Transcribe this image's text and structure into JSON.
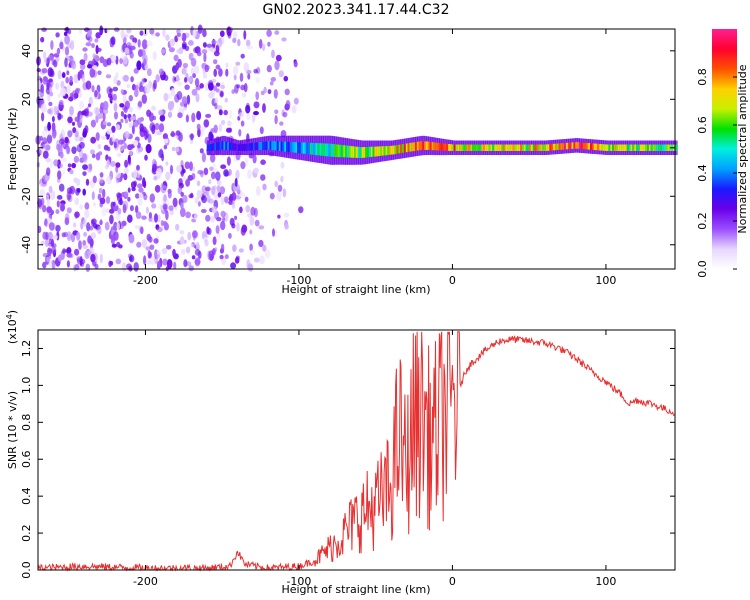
{
  "title": "GN02.2023.341.17.44.C32",
  "chart_data": [
    {
      "type": "heatmap",
      "name": "spectrogram",
      "xlabel": "Height of straight line (km)",
      "ylabel": "Frequency (Hz)",
      "xlim": [
        -270,
        145
      ],
      "ylim": [
        -50,
        49
      ],
      "xticks": [
        -200,
        -100,
        0,
        100
      ],
      "yticks": [
        -40,
        -20,
        0,
        20,
        40
      ],
      "colorbar": {
        "label": "Normalized spectral amplitude",
        "range": [
          0,
          1
        ],
        "ticks": [
          "0.0",
          "0.2",
          "0.4",
          "0.6",
          "0.8"
        ],
        "colormap": [
          "#ffffff",
          "#e6d6ff",
          "#9a4dff",
          "#6a00e8",
          "#1a1aff",
          "#00a0ff",
          "#00f0e0",
          "#00e000",
          "#c8f000",
          "#ffd000",
          "#ff5000",
          "#ff0030",
          "#ff2090"
        ]
      },
      "noise_region": {
        "x": [
          -270,
          -95
        ],
        "y": [
          -50,
          49
        ],
        "amplitude": 0.25
      },
      "signal_track": [
        {
          "x": -160,
          "center": 0,
          "halfwidth": 3,
          "amplitude": 0.35
        },
        {
          "x": -150,
          "center": 1,
          "halfwidth": 4,
          "amplitude": 0.4
        },
        {
          "x": -140,
          "center": 0,
          "halfwidth": 3,
          "amplitude": 0.3
        },
        {
          "x": -120,
          "center": 1,
          "halfwidth": 4,
          "amplitude": 0.4
        },
        {
          "x": -100,
          "center": 0,
          "halfwidth": 5,
          "amplitude": 0.45
        },
        {
          "x": -80,
          "center": -1,
          "halfwidth": 6,
          "amplitude": 0.55
        },
        {
          "x": -60,
          "center": -2,
          "halfwidth": 5,
          "amplitude": 0.65
        },
        {
          "x": -40,
          "center": -1,
          "halfwidth": 4,
          "amplitude": 0.75
        },
        {
          "x": -20,
          "center": 1,
          "halfwidth": 4,
          "amplitude": 0.85
        },
        {
          "x": 0,
          "center": 0,
          "halfwidth": 3,
          "amplitude": 0.8
        },
        {
          "x": 20,
          "center": 0,
          "halfwidth": 3,
          "amplitude": 0.7
        },
        {
          "x": 40,
          "center": 0,
          "halfwidth": 3,
          "amplitude": 0.7
        },
        {
          "x": 60,
          "center": 0,
          "halfwidth": 3,
          "amplitude": 0.75
        },
        {
          "x": 80,
          "center": 1,
          "halfwidth": 3,
          "amplitude": 0.95
        },
        {
          "x": 100,
          "center": 0,
          "halfwidth": 3,
          "amplitude": 0.7
        },
        {
          "x": 120,
          "center": 0,
          "halfwidth": 3,
          "amplitude": 0.65
        },
        {
          "x": 145,
          "center": 0,
          "halfwidth": 3,
          "amplitude": 0.6
        }
      ]
    },
    {
      "type": "line",
      "name": "snr",
      "xlabel": "Height of straight line (km)",
      "ylabel": "SNR (10 * v/v)",
      "y_multiplier": "(x10",
      "y_multiplier_exp": "4",
      "xlim": [
        -270,
        145
      ],
      "ylim": [
        0,
        1.3
      ],
      "xticks": [
        -200,
        -100,
        0,
        100
      ],
      "yticks": [
        "0.0",
        "0.2",
        "0.4",
        "0.6",
        "0.8",
        "1.0",
        "1.2"
      ],
      "color": "#e83030",
      "x": [
        -270,
        -240,
        -200,
        -160,
        -145,
        -140,
        -135,
        -120,
        -100,
        -90,
        -80,
        -70,
        -60,
        -50,
        -40,
        -35,
        -30,
        -25,
        -20,
        -15,
        -10,
        -5,
        0,
        5,
        10,
        20,
        30,
        40,
        50,
        60,
        70,
        80,
        90,
        100,
        110,
        115,
        120,
        130,
        145
      ],
      "y": [
        0.01,
        0.02,
        0.01,
        0.01,
        0.02,
        0.1,
        0.03,
        0.01,
        0.02,
        0.05,
        0.12,
        0.2,
        0.3,
        0.35,
        0.45,
        0.75,
        0.55,
        0.8,
        0.9,
        0.7,
        0.75,
        0.85,
        0.9,
        1.0,
        1.1,
        1.18,
        1.24,
        1.25,
        1.24,
        1.23,
        1.2,
        1.15,
        1.08,
        1.02,
        0.95,
        0.9,
        0.92,
        0.9,
        0.85
      ]
    }
  ]
}
